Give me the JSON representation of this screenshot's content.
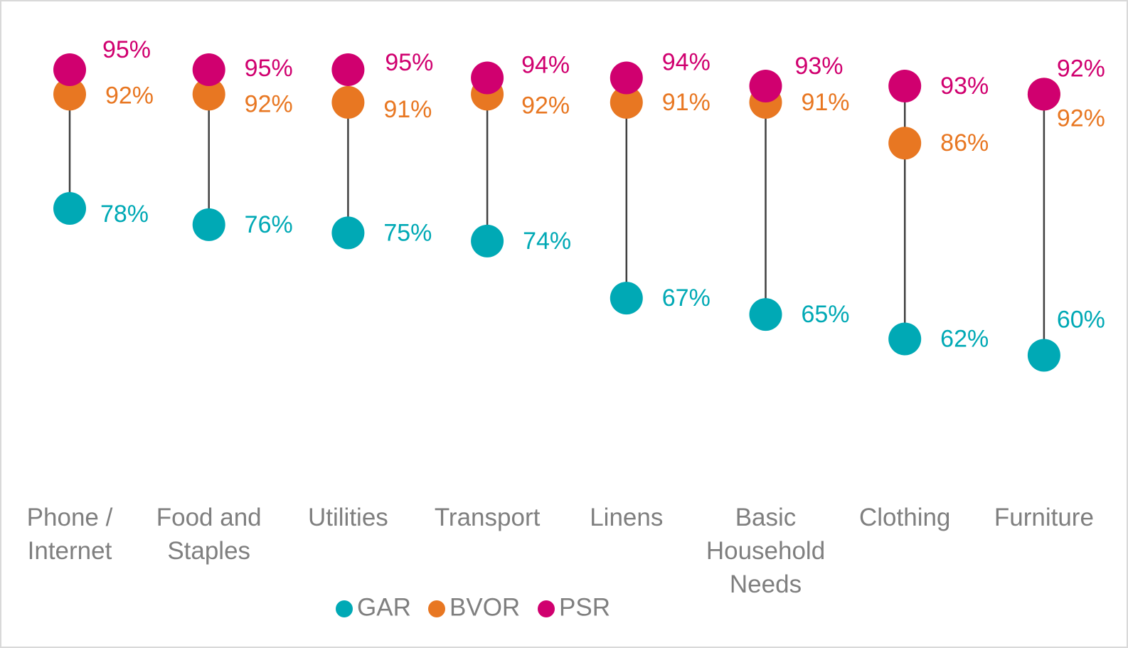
{
  "chart_data": {
    "type": "dumbbell",
    "title": "",
    "categories": [
      [
        "Phone /",
        "Internet"
      ],
      [
        "Food and",
        "Staples"
      ],
      [
        "Utilities"
      ],
      [
        "Transport"
      ],
      [
        "Linens"
      ],
      [
        "Basic",
        "Household",
        "Needs"
      ],
      [
        "Clothing"
      ],
      [
        "Furniture"
      ]
    ],
    "series": [
      {
        "key": "gar",
        "name": "GAR",
        "color": "#00A9B5",
        "values": [
          78,
          76,
          75,
          74,
          67,
          65,
          62,
          60
        ]
      },
      {
        "key": "bvor",
        "name": "BVOR",
        "color": "#E87722",
        "values": [
          92,
          92,
          91,
          92,
          91,
          91,
          86,
          92
        ]
      },
      {
        "key": "psr",
        "name": "PSR",
        "color": "#D0006F",
        "values": [
          95,
          95,
          95,
          94,
          94,
          93,
          93,
          92
        ]
      }
    ],
    "value_format": "{v}%",
    "legend": {
      "position": "bottom-center",
      "entries": [
        "GAR",
        "BVOR",
        "PSR"
      ]
    },
    "connector_color": "#404040",
    "label_color": "#7f7f7f"
  }
}
